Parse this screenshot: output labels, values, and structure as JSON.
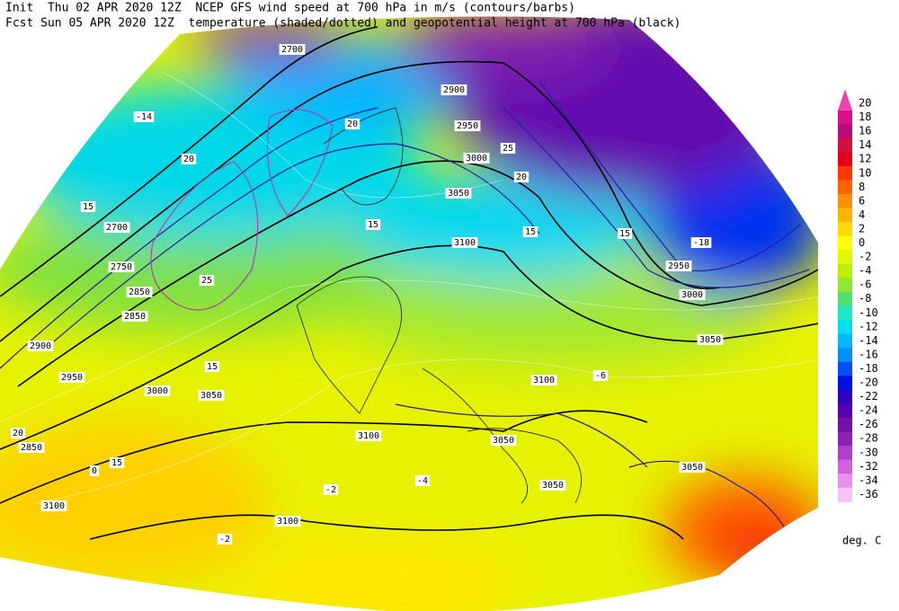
{
  "header": {
    "lines": [
      "Init  Thu 02 APR 2020 12Z  NCEP GFS wind speed at 700 hPa in m/s (contours/barbs)",
      "Fcst Sun 05 APR 2020 12Z  temperature (shaded/dotted) and geopotential height at 700 hPa (black)"
    ]
  },
  "colorbar": {
    "levels": [
      20,
      18,
      16,
      14,
      12,
      10,
      8,
      6,
      4,
      2,
      0,
      -2,
      -4,
      -6,
      -8,
      -10,
      -12,
      -14,
      -16,
      -18,
      -20,
      -22,
      -24,
      -26,
      -28,
      -30,
      -32,
      -34,
      -36
    ],
    "colors": [
      "#f040b0",
      "#d8108c",
      "#b80c78",
      "#d01040",
      "#e80018",
      "#ff3800",
      "#ff6400",
      "#ff9000",
      "#ffb400",
      "#ffd800",
      "#ffff00",
      "#e0f800",
      "#bcf000",
      "#90e830",
      "#50e070",
      "#20e8c0",
      "#00e0f0",
      "#00b8ff",
      "#0090ff",
      "#0050ff",
      "#0010e0",
      "#3000c0",
      "#5800b0",
      "#7410a8",
      "#9020b0",
      "#b040c8",
      "#d060e0",
      "#e890f0",
      "#f8c0f8"
    ],
    "unit": "deg. C"
  },
  "map": {
    "labels": [
      "2700",
      "2700",
      "2750",
      "2850",
      "2850",
      "2900",
      "2950",
      "3000",
      "3050",
      "3100",
      "3100",
      "3100",
      "3100",
      "3100",
      "3050",
      "3000",
      "2950",
      "2900",
      "2950",
      "3000",
      "3050",
      "2850",
      "3050",
      "3050",
      "3050",
      "15",
      "15",
      "15",
      "20",
      "20",
      "20",
      "25",
      "25",
      "20",
      "15",
      "15",
      "15",
      "-2",
      "-2",
      "-4",
      "0",
      "-6",
      "-14",
      "-18"
    ]
  }
}
